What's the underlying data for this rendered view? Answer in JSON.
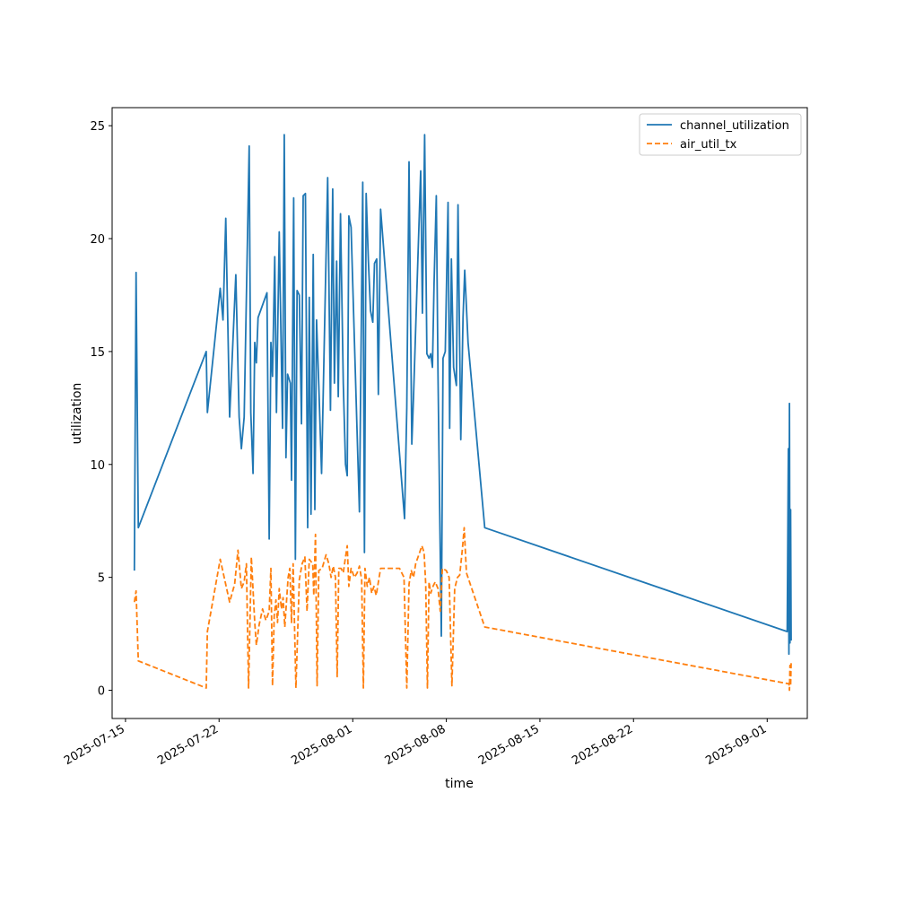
{
  "chart_data": {
    "type": "line",
    "title": "",
    "xlabel": "time",
    "ylabel": "utilization",
    "xlim": [
      "2025-07-14",
      "2025-09-04"
    ],
    "ylim": [
      -1.25,
      25.8
    ],
    "x_ticks": [
      "2025-07-15",
      "2025-07-22",
      "2025-08-01",
      "2025-08-08",
      "2025-08-15",
      "2025-08-22",
      "2025-09-01"
    ],
    "y_ticks": [
      0,
      5,
      10,
      15,
      20,
      25
    ],
    "y_tick_labels": [
      "0",
      "5",
      "10",
      "15",
      "20",
      "25"
    ],
    "grid": false,
    "legend_position": "top-right",
    "series": [
      {
        "name": "channel_utilization",
        "color": "#1f77b4",
        "style": "solid",
        "points": [
          [
            "2025-07-15T16:00",
            5.3
          ],
          [
            "2025-07-15T19:00",
            18.5
          ],
          [
            "2025-07-15T23:00",
            7.2
          ],
          [
            "2025-07-21T01:00",
            15.0
          ],
          [
            "2025-07-21T03:00",
            12.3
          ],
          [
            "2025-07-22T02:00",
            17.8
          ],
          [
            "2025-07-22T07:00",
            16.4
          ],
          [
            "2025-07-22T12:00",
            20.9
          ],
          [
            "2025-07-22T19:00",
            12.1
          ],
          [
            "2025-07-23T06:00",
            18.4
          ],
          [
            "2025-07-23T12:00",
            12.1
          ],
          [
            "2025-07-23T16:00",
            10.7
          ],
          [
            "2025-07-23T21:00",
            12.1
          ],
          [
            "2025-07-24T06:00",
            24.1
          ],
          [
            "2025-07-24T09:00",
            12.3
          ],
          [
            "2025-07-24T13:00",
            9.6
          ],
          [
            "2025-07-24T16:00",
            15.4
          ],
          [
            "2025-07-24T19:00",
            14.5
          ],
          [
            "2025-07-24T22:00",
            16.5
          ],
          [
            "2025-07-25T14:00",
            17.6
          ],
          [
            "2025-07-25T18:00",
            6.7
          ],
          [
            "2025-07-25T21:00",
            15.4
          ],
          [
            "2025-07-26T00:00",
            13.9
          ],
          [
            "2025-07-26T04:00",
            19.2
          ],
          [
            "2025-07-26T07:00",
            12.3
          ],
          [
            "2025-07-26T12:00",
            20.3
          ],
          [
            "2025-07-26T18:00",
            11.6
          ],
          [
            "2025-07-26T21:00",
            24.6
          ],
          [
            "2025-07-27T00:00",
            10.3
          ],
          [
            "2025-07-27T03:00",
            14.0
          ],
          [
            "2025-07-27T08:00",
            13.6
          ],
          [
            "2025-07-27T10:00",
            9.3
          ],
          [
            "2025-07-27T14:00",
            21.8
          ],
          [
            "2025-07-27T17:00",
            5.8
          ],
          [
            "2025-07-27T20:00",
            17.7
          ],
          [
            "2025-07-28T00:00",
            17.5
          ],
          [
            "2025-07-28T04:00",
            11.8
          ],
          [
            "2025-07-28T07:00",
            21.9
          ],
          [
            "2025-07-28T11:00",
            22.0
          ],
          [
            "2025-07-28T15:00",
            7.2
          ],
          [
            "2025-07-28T18:00",
            17.4
          ],
          [
            "2025-07-28T21:00",
            7.8
          ],
          [
            "2025-07-29T01:00",
            19.3
          ],
          [
            "2025-07-29T04:00",
            8.0
          ],
          [
            "2025-07-29T07:00",
            16.4
          ],
          [
            "2025-07-29T11:00",
            13.5
          ],
          [
            "2025-07-29T16:00",
            9.6
          ],
          [
            "2025-07-30T03:00",
            22.7
          ],
          [
            "2025-07-30T08:00",
            12.4
          ],
          [
            "2025-07-30T12:00",
            22.2
          ],
          [
            "2025-07-30T15:00",
            13.6
          ],
          [
            "2025-07-30T19:00",
            19.0
          ],
          [
            "2025-07-30T22:00",
            13.0
          ],
          [
            "2025-07-31T02:00",
            21.1
          ],
          [
            "2025-07-31T07:00",
            13.6
          ],
          [
            "2025-07-31T11:00",
            10.0
          ],
          [
            "2025-07-31T14:00",
            9.5
          ],
          [
            "2025-07-31T17:00",
            21.0
          ],
          [
            "2025-07-31T21:00",
            20.5
          ],
          [
            "2025-08-01T12:00",
            7.9
          ],
          [
            "2025-08-01T18:00",
            22.5
          ],
          [
            "2025-08-01T21:00",
            6.1
          ],
          [
            "2025-08-02T00:00",
            22.0
          ],
          [
            "2025-08-02T04:00",
            19.0
          ],
          [
            "2025-08-02T08:00",
            16.8
          ],
          [
            "2025-08-02T12:00",
            16.3
          ],
          [
            "2025-08-02T15:00",
            18.9
          ],
          [
            "2025-08-02T19:00",
            19.1
          ],
          [
            "2025-08-02T22:00",
            13.1
          ],
          [
            "2025-08-03T02:00",
            21.3
          ],
          [
            "2025-08-04T21:00",
            7.6
          ],
          [
            "2025-08-05T01:00",
            12.5
          ],
          [
            "2025-08-05T05:00",
            23.4
          ],
          [
            "2025-08-05T10:00",
            10.9
          ],
          [
            "2025-08-05T13:00",
            13.0
          ],
          [
            "2025-08-06T02:00",
            23.0
          ],
          [
            "2025-08-06T05:00",
            16.7
          ],
          [
            "2025-08-06T09:00",
            24.6
          ],
          [
            "2025-08-06T13:00",
            14.9
          ],
          [
            "2025-08-06T17:00",
            14.7
          ],
          [
            "2025-08-06T20:00",
            14.9
          ],
          [
            "2025-08-06T23:00",
            14.3
          ],
          [
            "2025-08-07T02:00",
            18.0
          ],
          [
            "2025-08-07T06:00",
            21.9
          ],
          [
            "2025-08-07T09:00",
            14.0
          ],
          [
            "2025-08-07T12:00",
            8.2
          ],
          [
            "2025-08-07T15:00",
            2.4
          ],
          [
            "2025-08-07T18:00",
            14.7
          ],
          [
            "2025-08-07T22:00",
            15.0
          ],
          [
            "2025-08-08T03:00",
            21.6
          ],
          [
            "2025-08-08T06:00",
            11.6
          ],
          [
            "2025-08-08T09:00",
            19.1
          ],
          [
            "2025-08-08T13:00",
            14.3
          ],
          [
            "2025-08-08T18:00",
            13.5
          ],
          [
            "2025-08-08T21:00",
            21.5
          ],
          [
            "2025-08-09T02:00",
            11.1
          ],
          [
            "2025-08-09T06:00",
            16.5
          ],
          [
            "2025-08-09T09:00",
            18.6
          ],
          [
            "2025-08-09T15:00",
            15.4
          ],
          [
            "2025-08-10T21:00",
            7.2
          ],
          [
            "2025-09-02T12:00",
            2.6
          ],
          [
            "2025-09-02T14:00",
            10.7
          ],
          [
            "2025-09-02T15:00",
            1.6
          ],
          [
            "2025-09-02T16:00",
            12.7
          ],
          [
            "2025-09-02T17:00",
            2.1
          ],
          [
            "2025-09-02T18:00",
            8.0
          ],
          [
            "2025-09-02T19:00",
            2.2
          ]
        ]
      },
      {
        "name": "air_util_tx",
        "color": "#ff7f0e",
        "style": "dashed",
        "points": [
          [
            "2025-07-15T16:00",
            3.9
          ],
          [
            "2025-07-15T19:00",
            4.4
          ],
          [
            "2025-07-15T23:00",
            1.3
          ],
          [
            "2025-07-21T01:00",
            0.1
          ],
          [
            "2025-07-21T03:00",
            2.6
          ],
          [
            "2025-07-22T02:00",
            5.8
          ],
          [
            "2025-07-22T19:00",
            3.9
          ],
          [
            "2025-07-23T04:00",
            4.7
          ],
          [
            "2025-07-23T10:00",
            6.2
          ],
          [
            "2025-07-23T16:00",
            4.5
          ],
          [
            "2025-07-23T21:00",
            4.8
          ],
          [
            "2025-07-24T01:00",
            5.6
          ],
          [
            "2025-07-24T05:00",
            0.1
          ],
          [
            "2025-07-24T10:00",
            5.9
          ],
          [
            "2025-07-24T16:00",
            3.0
          ],
          [
            "2025-07-24T19:00",
            2.0
          ],
          [
            "2025-07-25T00:00",
            2.9
          ],
          [
            "2025-07-25T06:00",
            3.6
          ],
          [
            "2025-07-25T12:00",
            3.1
          ],
          [
            "2025-07-25T18:00",
            3.5
          ],
          [
            "2025-07-25T21:00",
            5.4
          ],
          [
            "2025-07-26T00:00",
            0.2
          ],
          [
            "2025-07-26T03:00",
            3.3
          ],
          [
            "2025-07-26T06:00",
            4.0
          ],
          [
            "2025-07-26T09:00",
            3.0
          ],
          [
            "2025-07-26T12:00",
            4.5
          ],
          [
            "2025-07-26T16:00",
            3.6
          ],
          [
            "2025-07-26T19:00",
            4.1
          ],
          [
            "2025-07-26T22:00",
            2.8
          ],
          [
            "2025-07-27T04:00",
            5.0
          ],
          [
            "2025-07-27T07:00",
            5.4
          ],
          [
            "2025-07-27T10:00",
            3.0
          ],
          [
            "2025-07-27T13:00",
            5.6
          ],
          [
            "2025-07-27T18:00",
            0.1
          ],
          [
            "2025-07-28T00:00",
            4.9
          ],
          [
            "2025-07-28T05:00",
            5.6
          ],
          [
            "2025-07-28T10:00",
            5.9
          ],
          [
            "2025-07-28T14:00",
            3.5
          ],
          [
            "2025-07-28T18:00",
            5.8
          ],
          [
            "2025-07-29T00:00",
            5.6
          ],
          [
            "2025-07-29T02:00",
            4.2
          ],
          [
            "2025-07-29T05:00",
            6.9
          ],
          [
            "2025-07-29T08:00",
            0.2
          ],
          [
            "2025-07-29T11:00",
            5.3
          ],
          [
            "2025-07-29T17:00",
            5.4
          ],
          [
            "2025-07-30T00:00",
            6.0
          ],
          [
            "2025-07-30T05:00",
            5.6
          ],
          [
            "2025-07-30T09:00",
            5.0
          ],
          [
            "2025-07-30T13:00",
            5.5
          ],
          [
            "2025-07-30T17:00",
            5.0
          ],
          [
            "2025-07-30T20:00",
            0.6
          ],
          [
            "2025-07-30T23:00",
            5.4
          ],
          [
            "2025-07-31T03:00",
            5.4
          ],
          [
            "2025-07-31T07:00",
            5.2
          ],
          [
            "2025-07-31T11:00",
            5.9
          ],
          [
            "2025-07-31T14:00",
            6.4
          ],
          [
            "2025-07-31T17:00",
            4.6
          ],
          [
            "2025-07-31T21:00",
            5.4
          ],
          [
            "2025-08-01T03:00",
            5.0
          ],
          [
            "2025-08-01T08:00",
            5.2
          ],
          [
            "2025-08-01T12:00",
            5.5
          ],
          [
            "2025-08-01T16:00",
            4.9
          ],
          [
            "2025-08-01T19:00",
            0.1
          ],
          [
            "2025-08-01T22:00",
            5.4
          ],
          [
            "2025-08-02T02:00",
            4.6
          ],
          [
            "2025-08-02T06:00",
            5.0
          ],
          [
            "2025-08-02T10:00",
            4.3
          ],
          [
            "2025-08-02T14:00",
            4.6
          ],
          [
            "2025-08-02T18:00",
            4.2
          ],
          [
            "2025-08-03T02:00",
            5.4
          ],
          [
            "2025-08-04T00:00",
            5.4
          ],
          [
            "2025-08-04T12:00",
            5.4
          ],
          [
            "2025-08-04T20:00",
            5.0
          ],
          [
            "2025-08-05T01:00",
            0.1
          ],
          [
            "2025-08-05T05:00",
            4.7
          ],
          [
            "2025-08-05T09:00",
            5.3
          ],
          [
            "2025-08-05T13:00",
            5.0
          ],
          [
            "2025-08-05T17:00",
            5.6
          ],
          [
            "2025-08-06T00:00",
            6.1
          ],
          [
            "2025-08-06T04:00",
            6.4
          ],
          [
            "2025-08-06T08:00",
            6.1
          ],
          [
            "2025-08-06T11:00",
            4.7
          ],
          [
            "2025-08-06T14:00",
            0.1
          ],
          [
            "2025-08-06T17:00",
            4.8
          ],
          [
            "2025-08-06T20:00",
            4.3
          ],
          [
            "2025-08-07T00:00",
            4.6
          ],
          [
            "2025-08-07T04:00",
            4.8
          ],
          [
            "2025-08-07T09:00",
            4.5
          ],
          [
            "2025-08-07T13:00",
            3.5
          ],
          [
            "2025-08-07T17:00",
            5.4
          ],
          [
            "2025-08-08T00:00",
            5.3
          ],
          [
            "2025-08-08T05:00",
            5.0
          ],
          [
            "2025-08-08T10:00",
            0.2
          ],
          [
            "2025-08-08T15:00",
            4.5
          ],
          [
            "2025-08-08T20:00",
            5.0
          ],
          [
            "2025-08-09T00:00",
            5.1
          ],
          [
            "2025-08-09T05:00",
            6.3
          ],
          [
            "2025-08-09T08:00",
            7.2
          ],
          [
            "2025-08-09T12:00",
            5.2
          ],
          [
            "2025-08-10T21:00",
            2.8
          ],
          [
            "2025-09-02T12:00",
            0.3
          ],
          [
            "2025-09-02T15:00",
            0.3
          ],
          [
            "2025-09-02T16:00",
            0.0
          ],
          [
            "2025-09-02T17:00",
            1.1
          ],
          [
            "2025-09-02T18:00",
            0.2
          ],
          [
            "2025-09-02T19:00",
            1.2
          ]
        ]
      }
    ]
  }
}
